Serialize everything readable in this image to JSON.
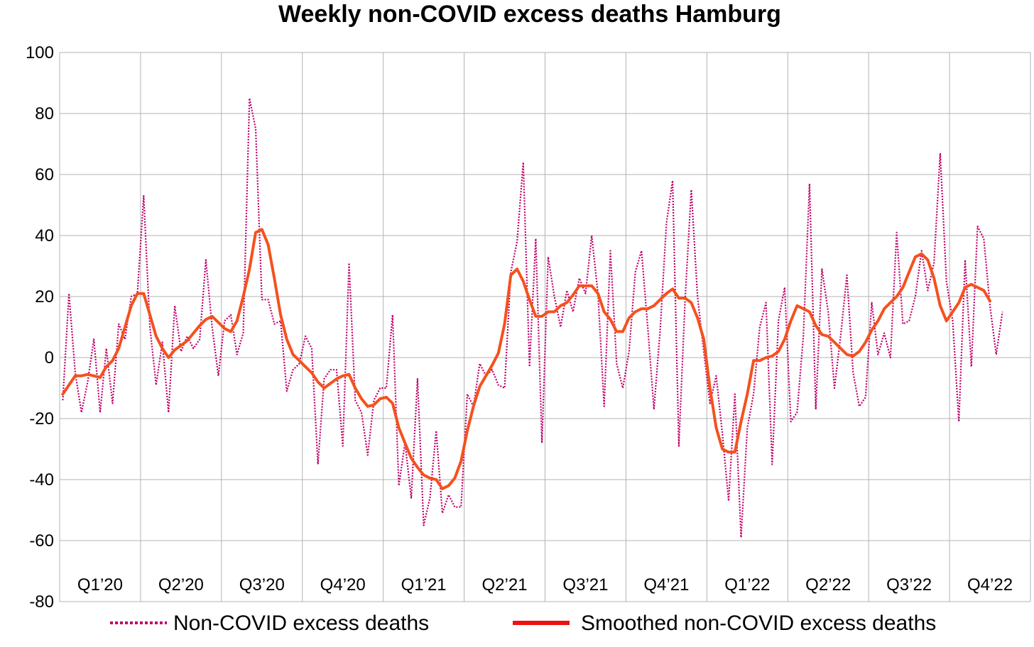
{
  "chart_data": {
    "type": "line",
    "title": "Weekly non-COVID excess deaths Hamburg",
    "ylim": [
      -80,
      100
    ],
    "yticks": [
      100,
      80,
      60,
      40,
      20,
      0,
      -20,
      -40,
      -60,
      -80
    ],
    "ytick_labels": [
      "100",
      "80",
      "60",
      "40",
      "20",
      "0",
      "-20",
      "-40",
      "-60",
      "-80"
    ],
    "quarters": [
      "Q1’20",
      "Q2’20",
      "Q3’20",
      "Q4’20",
      "Q1’21",
      "Q2’21",
      "Q3’21",
      "Q4’21",
      "Q1’22",
      "Q2’22",
      "Q3’22",
      "Q4’22"
    ],
    "weeks_per_quarter": 13,
    "grid": true,
    "legend_position": "bottom",
    "series": [
      {
        "name": "Non-COVID excess deaths",
        "color": "#c0006a",
        "style": "dotted",
        "values": [
          -14,
          21,
          -5,
          -18,
          -8,
          6,
          -18,
          3,
          -15,
          11,
          6,
          20,
          21,
          53,
          10,
          -9,
          5,
          -18,
          17,
          2,
          7,
          3,
          6,
          32,
          10,
          -6,
          12,
          14,
          1,
          8,
          85,
          75,
          19,
          19,
          11,
          12,
          -11,
          -4,
          -2,
          7,
          3,
          -35,
          -7,
          -4,
          -4,
          -29,
          31,
          -14,
          -18,
          -32,
          -14,
          -10,
          -10,
          14,
          -42,
          -28,
          -46,
          -7,
          -55,
          -46,
          -24,
          -51,
          -45,
          -49,
          -49,
          -12,
          -16,
          -2,
          -6,
          -4,
          -9,
          -10,
          28,
          38,
          64,
          -3,
          39,
          -28,
          33,
          20,
          10,
          22,
          15,
          26,
          21,
          40,
          21,
          -16,
          35,
          -2,
          -10,
          2,
          28,
          35,
          10,
          -17,
          9,
          44,
          58,
          -29,
          19,
          55,
          20,
          2,
          -15,
          -6,
          -25,
          -47,
          -12,
          -59,
          -23,
          -12,
          10,
          18,
          -35,
          12,
          23,
          -21,
          -18,
          7,
          57,
          -17,
          29,
          15,
          -10,
          7,
          27,
          -5,
          -16,
          -13,
          18,
          1,
          8,
          0,
          41,
          11,
          12,
          20,
          35,
          22,
          31,
          67,
          25,
          12,
          -21,
          32,
          -3,
          43,
          39,
          17,
          1,
          15
        ]
      },
      {
        "name": "Smoothed non-COVID excess deaths",
        "color": "#f4511e",
        "style": "solid",
        "values": [
          -12,
          -9,
          -6,
          -6,
          -5.5,
          -6,
          -6.5,
          -3,
          -1,
          3,
          10,
          17,
          21,
          21,
          14,
          7,
          3,
          0,
          2.5,
          4,
          5.5,
          8,
          10.5,
          12.5,
          13.5,
          11.5,
          9.5,
          8.5,
          12,
          20,
          29,
          41,
          42,
          37,
          26,
          14,
          6,
          1,
          -1,
          -3,
          -5,
          -8,
          -10,
          -8.5,
          -7,
          -6,
          -5.5,
          -10,
          -13.5,
          -16,
          -15.5,
          -13.5,
          -13,
          -15,
          -23,
          -28,
          -33,
          -36,
          -38.5,
          -39.5,
          -40,
          -43,
          -42,
          -39.5,
          -34,
          -24,
          -16,
          -9.5,
          -6,
          -2.5,
          1.5,
          11,
          27,
          29,
          25,
          19,
          13.5,
          13.5,
          15,
          15,
          17,
          18,
          20.5,
          23.5,
          23.5,
          23.5,
          21,
          15,
          12.5,
          8.5,
          8.5,
          13,
          15,
          16,
          16,
          17,
          19,
          21,
          22.5,
          19.5,
          19.5,
          18,
          13,
          6,
          -10,
          -23,
          -30,
          -31,
          -31,
          -21,
          -12,
          -1,
          -1,
          0,
          0.5,
          2,
          6,
          12,
          17,
          16,
          15,
          10.5,
          7.5,
          7,
          5,
          3,
          1,
          0.5,
          2,
          5,
          9,
          12,
          16,
          18,
          20,
          23,
          28,
          33,
          34,
          32,
          26,
          17,
          12,
          15,
          18,
          23,
          24,
          23,
          22,
          18.5
        ]
      }
    ]
  }
}
